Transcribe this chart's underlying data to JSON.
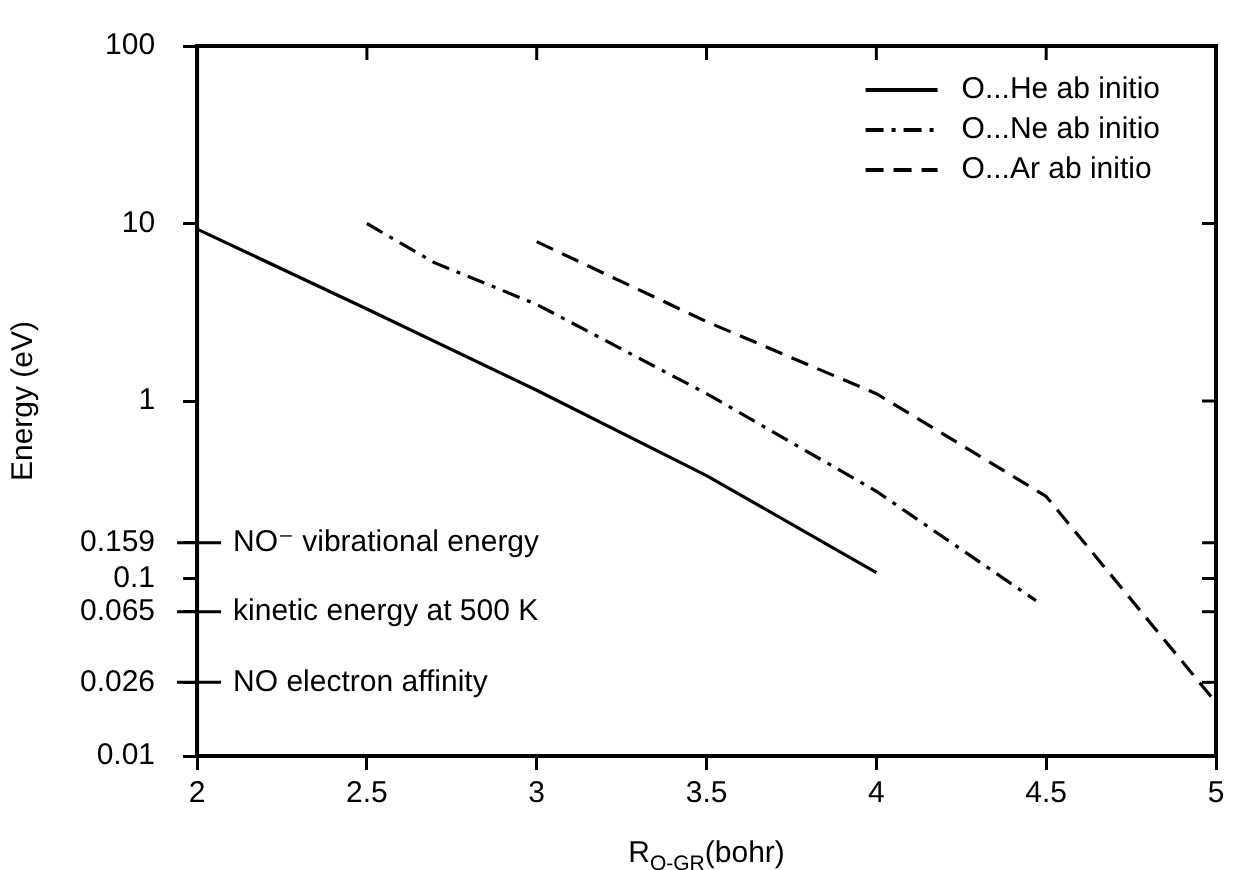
{
  "chart_data": {
    "type": "line",
    "xlabel": "R$_{O-GR}$(bohr)",
    "ylabel": "Energy (eV)",
    "log": "y",
    "grid": false,
    "legend": "top right",
    "marker": "none",
    "xlim": [
      2,
      5
    ],
    "xticks": [
      2,
      2.5,
      3,
      3.5,
      4,
      4.5,
      5
    ],
    "ylim": [
      0.01,
      100
    ],
    "yticks": [
      0.01,
      0.026,
      0.065,
      0.1,
      0.159,
      1,
      10,
      100
    ],
    "series": [
      {
        "name": "O...He ab initio",
        "color": "#000000",
        "line_style": "solid",
        "x": [
          2,
          2.5,
          3,
          3.5,
          4
        ],
        "values": [
          9.3,
          3.3,
          1.15,
          0.38,
          0.108
        ]
      },
      {
        "name": "O...Ne ab initio",
        "color": "#000000",
        "line_style": "dashdot",
        "x": [
          2.5,
          2.7,
          3,
          3.5,
          4,
          4.47
        ],
        "values": [
          10,
          6,
          3.5,
          1.1,
          0.31,
          0.075
        ]
      },
      {
        "name": "O...Ar ab initio",
        "color": "#000000",
        "line_style": "dashed",
        "x": [
          3,
          3.5,
          4,
          4.5,
          5
        ],
        "values": [
          7.9,
          2.8,
          1.1,
          0.29,
          0.02
        ]
      }
    ],
    "ref_lines": [
      {
        "axis": "y",
        "value": 0.159,
        "label": "NO⁻ vibrational energy"
      },
      {
        "axis": "y",
        "value": 0.065,
        "label": "kinetic energy at 500 K"
      },
      {
        "axis": "y",
        "value": 0.026,
        "label": "NO electron affinity"
      }
    ]
  }
}
